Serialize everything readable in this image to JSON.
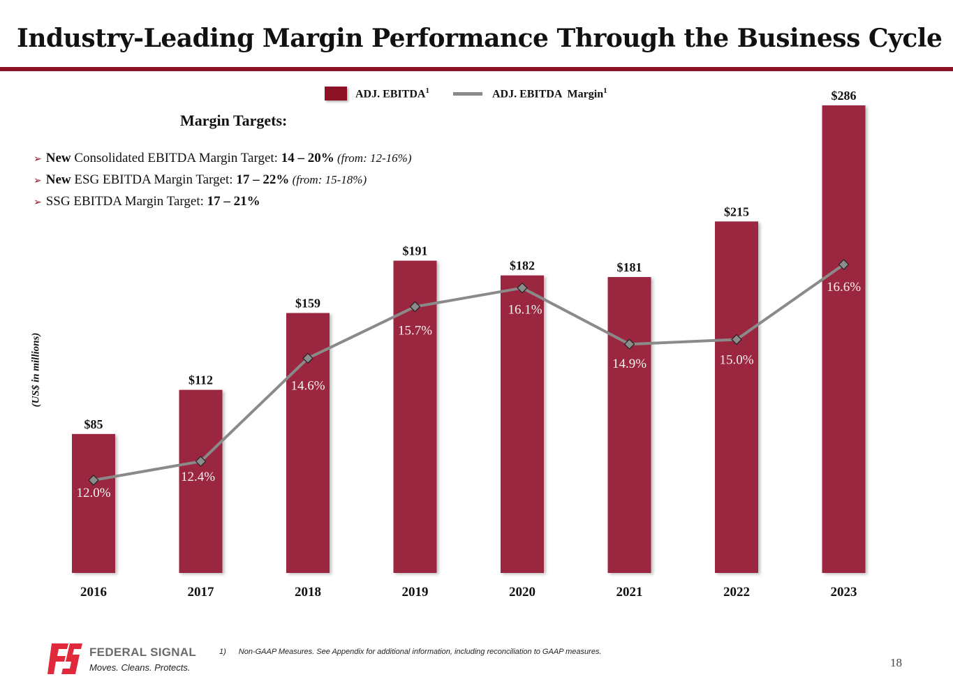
{
  "header": {
    "title": "Industry-Leading Margin Performance Through the Business Cycle"
  },
  "legend": {
    "bar_label": "ADJ. EBITDA",
    "bar_sup": "1",
    "line_label": "ADJ. EBITDA  Margin",
    "line_sup": "1"
  },
  "targets": {
    "heading": "Margin Targets:",
    "items": [
      {
        "prefix_bold": "New",
        "text": " Consolidated EBITDA Margin Target: ",
        "value_bold": "14 – 20%",
        "note": " (from: 12-16%)"
      },
      {
        "prefix_bold": "New",
        "text": " ESG EBITDA Margin Target: ",
        "value_bold": "17 – 22%",
        "note": " (from: 15-18%)"
      },
      {
        "prefix_bold": "",
        "text": "SSG EBITDA Margin Target: ",
        "value_bold": "17 – 21%",
        "note": ""
      }
    ]
  },
  "chart_data": {
    "type": "bar",
    "title": "",
    "xlabel": "",
    "ylabel": "(US$ in millions)",
    "categories": [
      "2016",
      "2017",
      "2018",
      "2019",
      "2020",
      "2021",
      "2022",
      "2023"
    ],
    "series": [
      {
        "name": "ADJ. EBITDA",
        "type": "bar",
        "values": [
          85,
          112,
          159,
          191,
          182,
          181,
          215,
          286
        ],
        "labels": [
          "$85",
          "$112",
          "$159",
          "$191",
          "$182",
          "$181",
          "$215",
          "$286"
        ],
        "color": "#9b2640"
      },
      {
        "name": "ADJ. EBITDA Margin",
        "type": "line",
        "values": [
          12.0,
          12.4,
          14.6,
          15.7,
          16.1,
          14.9,
          15.0,
          16.6
        ],
        "labels": [
          "12.0%",
          "12.4%",
          "14.6%",
          "15.7%",
          "16.1%",
          "14.9%",
          "15.0%",
          "16.6%"
        ],
        "color": "#8a8a8a"
      }
    ],
    "ylim": [
      0,
      286
    ],
    "grid": false,
    "legend_position": "top"
  },
  "footer": {
    "brand": "FEDERAL SIGNAL",
    "tagline": "Moves. Cleans. Protects.",
    "footnote_num": "1)",
    "footnote_text": "Non-GAAP Measures. See Appendix for additional information, including reconciliation to GAAP measures.",
    "page_number": "18"
  },
  "colors": {
    "accent": "#8b1225",
    "bar": "#9b2640",
    "line": "#8a8a8a",
    "logo": "#e0293a"
  }
}
